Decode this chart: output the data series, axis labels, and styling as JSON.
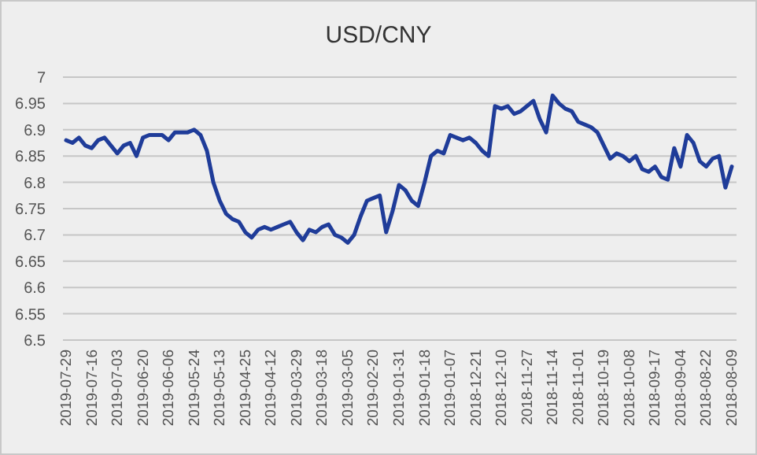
{
  "chart_data": {
    "type": "line",
    "title": "USD/CNY",
    "categories": [
      "2019-07-29",
      null,
      null,
      null,
      "2019-07-16",
      null,
      null,
      null,
      "2019-07-03",
      null,
      null,
      null,
      "2019-06-20",
      null,
      null,
      null,
      "2019-06-06",
      null,
      null,
      null,
      "2019-05-24",
      null,
      null,
      null,
      "2019-05-13",
      null,
      null,
      null,
      "2019-04-25",
      null,
      null,
      null,
      "2019-04-12",
      null,
      null,
      null,
      "2019-03-29",
      null,
      null,
      null,
      "2019-03-18",
      null,
      null,
      null,
      "2019-03-05",
      null,
      null,
      null,
      "2019-02-20",
      null,
      null,
      null,
      "2019-01-31",
      null,
      null,
      null,
      "2019-01-18",
      null,
      null,
      null,
      "2019-01-07",
      null,
      null,
      null,
      "2018-12-21",
      null,
      null,
      null,
      "2018-12-10",
      null,
      null,
      null,
      "2018-11-27",
      null,
      null,
      null,
      "2018-11-14",
      null,
      null,
      null,
      "2018-11-01",
      null,
      null,
      null,
      "2018-10-19",
      null,
      null,
      null,
      "2018-10-08",
      null,
      null,
      null,
      "2018-09-17",
      null,
      null,
      null,
      "2018-09-04",
      null,
      null,
      null,
      "2018-08-22",
      null,
      null,
      null,
      "2018-08-09"
    ],
    "series": [
      {
        "color": "#1f3c99",
        "values": [
          6.88,
          6.875,
          6.885,
          6.87,
          6.865,
          6.88,
          6.885,
          6.87,
          6.855,
          6.87,
          6.875,
          6.85,
          6.885,
          6.89,
          6.89,
          6.89,
          6.88,
          6.895,
          6.895,
          6.895,
          6.9,
          6.89,
          6.86,
          6.8,
          6.765,
          6.74,
          6.73,
          6.725,
          6.705,
          6.695,
          6.71,
          6.715,
          6.71,
          6.715,
          6.72,
          6.725,
          6.705,
          6.69,
          6.71,
          6.705,
          6.715,
          6.72,
          6.7,
          6.695,
          6.685,
          6.7,
          6.735,
          6.765,
          6.77,
          6.775,
          6.705,
          6.745,
          6.795,
          6.785,
          6.765,
          6.755,
          6.8,
          6.85,
          6.86,
          6.855,
          6.89,
          6.885,
          6.88,
          6.885,
          6.875,
          6.86,
          6.85,
          6.945,
          6.94,
          6.945,
          6.93,
          6.935,
          6.945,
          6.955,
          6.92,
          6.895,
          6.965,
          6.95,
          6.94,
          6.935,
          6.915,
          6.91,
          6.905,
          6.895,
          6.87,
          6.845,
          6.855,
          6.85,
          6.84,
          6.85,
          6.825,
          6.82,
          6.83,
          6.81,
          6.805,
          6.865,
          6.83,
          6.89,
          6.875,
          6.84,
          6.83,
          6.845,
          6.85,
          6.79,
          6.83
        ]
      }
    ],
    "ylim": [
      6.5,
      7
    ],
    "yticks": [
      6.5,
      6.55,
      6.6,
      6.65,
      6.7,
      6.75,
      6.8,
      6.85,
      6.9,
      6.95,
      7
    ],
    "grid": "y"
  }
}
